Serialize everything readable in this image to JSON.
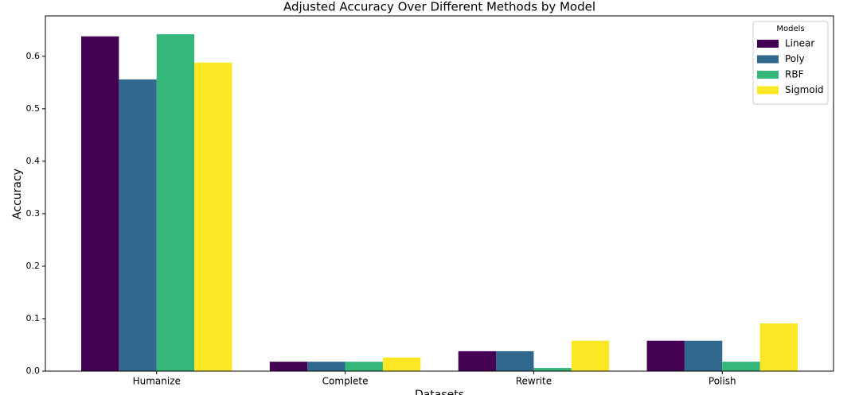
{
  "chart_data": {
    "type": "bar",
    "title": "Adjusted Accuracy Over Different Methods by Model",
    "x_label": "Datasets",
    "y_label": "Accuracy",
    "categories": [
      "Humanize",
      "Complete",
      "Rewrite",
      "Polish"
    ],
    "series": [
      {
        "name": "Linear",
        "color": "#440154",
        "values": [
          0.638,
          0.018,
          0.038,
          0.058
        ]
      },
      {
        "name": "Poly",
        "color": "#31688e",
        "values": [
          0.556,
          0.018,
          0.038,
          0.058
        ]
      },
      {
        "name": "RBF",
        "color": "#35b779",
        "values": [
          0.642,
          0.018,
          0.006,
          0.018
        ]
      },
      {
        "name": "Sigmoid",
        "color": "#fde725",
        "values": [
          0.588,
          0.026,
          0.058,
          0.091
        ]
      }
    ],
    "ylim": [
      0,
      0.677
    ],
    "yticks": [
      {
        "value": 0,
        "label": "0.0"
      },
      0.1,
      0.2,
      0.3,
      0.4,
      0.5,
      0.6
    ],
    "grid": false,
    "legend_title": "Models",
    "legend_position": "upper right"
  }
}
